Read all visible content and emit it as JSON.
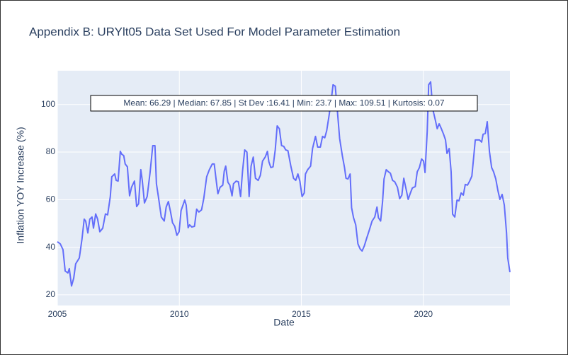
{
  "chart_data": {
    "type": "line",
    "title": "Appendix B: URYlt05 Data Set Used For Model Parameter Estimation",
    "x_label": "Date",
    "y_label": "Inflation YOY Increase (%)",
    "annotation": "Mean: 66.29 | Median: 67.85 | St Dev :16.41 | Min: 23.7 | Max: 109.51 | Kurtosis: 0.07",
    "color": "#636efa",
    "grid": true,
    "xlim": [
      2005,
      2023.55
    ],
    "xticks": [
      2005,
      2010,
      2015,
      2020
    ],
    "ylim": [
      15.5,
      114.2
    ],
    "yticks": [
      20,
      40,
      60,
      80,
      100
    ],
    "x": [
      2005.0,
      2005.12,
      2005.23,
      2005.32,
      2005.43,
      2005.49,
      2005.58,
      2005.67,
      2005.75,
      2005.9,
      2006.01,
      2006.1,
      2006.16,
      2006.25,
      2006.33,
      2006.42,
      2006.48,
      2006.57,
      2006.65,
      2006.74,
      2006.86,
      2006.97,
      2007.06,
      2007.17,
      2007.23,
      2007.35,
      2007.41,
      2007.49,
      2007.58,
      2007.64,
      2007.72,
      2007.78,
      2007.87,
      2007.96,
      2008.04,
      2008.16,
      2008.25,
      2008.33,
      2008.42,
      2008.48,
      2008.57,
      2008.68,
      2008.8,
      2008.91,
      2009.0,
      2009.06,
      2009.14,
      2009.26,
      2009.38,
      2009.46,
      2009.55,
      2009.64,
      2009.72,
      2009.81,
      2009.9,
      2009.99,
      2010.07,
      2010.22,
      2010.28,
      2010.36,
      2010.42,
      2010.51,
      2010.62,
      2010.71,
      2010.8,
      2010.91,
      2011.0,
      2011.12,
      2011.23,
      2011.35,
      2011.43,
      2011.52,
      2011.58,
      2011.67,
      2011.78,
      2011.84,
      2011.9,
      2011.99,
      2012.07,
      2012.16,
      2012.22,
      2012.33,
      2012.42,
      2012.51,
      2012.59,
      2012.68,
      2012.77,
      2012.86,
      2012.94,
      2013.03,
      2013.12,
      2013.23,
      2013.32,
      2013.41,
      2013.52,
      2013.61,
      2013.67,
      2013.75,
      2013.84,
      2013.93,
      2014.01,
      2014.1,
      2014.19,
      2014.28,
      2014.36,
      2014.45,
      2014.57,
      2014.68,
      2014.77,
      2014.86,
      2014.94,
      2015.03,
      2015.12,
      2015.17,
      2015.26,
      2015.38,
      2015.46,
      2015.58,
      2015.67,
      2015.78,
      2015.87,
      2015.96,
      2016.04,
      2016.13,
      2016.22,
      2016.3,
      2016.39,
      2016.48,
      2016.57,
      2016.68,
      2016.77,
      2016.83,
      2016.91,
      2017.0,
      2017.06,
      2017.14,
      2017.23,
      2017.32,
      2017.41,
      2017.49,
      2017.58,
      2017.67,
      2017.78,
      2017.9,
      2018.01,
      2018.1,
      2018.16,
      2018.25,
      2018.33,
      2018.39,
      2018.48,
      2018.57,
      2018.65,
      2018.74,
      2018.83,
      2018.94,
      2019.03,
      2019.12,
      2019.2,
      2019.29,
      2019.38,
      2019.46,
      2019.55,
      2019.67,
      2019.75,
      2019.84,
      2019.93,
      2020.01,
      2020.07,
      2020.16,
      2020.22,
      2020.3,
      2020.39,
      2020.48,
      2020.57,
      2020.65,
      2020.74,
      2020.83,
      2020.91,
      2020.97,
      2021.06,
      2021.14,
      2021.2,
      2021.29,
      2021.38,
      2021.46,
      2021.55,
      2021.64,
      2021.72,
      2021.81,
      2021.9,
      2021.99,
      2022.07,
      2022.13,
      2022.22,
      2022.3,
      2022.39,
      2022.45,
      2022.54,
      2022.62,
      2022.71,
      2022.8,
      2022.88,
      2022.97,
      2023.06,
      2023.14,
      2023.23,
      2023.32,
      2023.41,
      2023.46,
      2023.55
    ],
    "values": [
      42.3,
      41.4,
      39,
      30,
      29.2,
      31,
      23.7,
      27,
      33,
      35.5,
      43.5,
      51.8,
      51,
      46,
      51.8,
      52.7,
      48,
      54,
      51.8,
      46.5,
      48,
      54,
      53.6,
      61.3,
      69.6,
      70.8,
      68.1,
      67.8,
      80.3,
      79.1,
      78.5,
      75,
      73.8,
      61.6,
      65.2,
      67.8,
      57.1,
      58.3,
      72.6,
      68.1,
      58.6,
      61.3,
      71.4,
      82.7,
      82.7,
      66.7,
      61.3,
      52.7,
      51,
      56.9,
      59.2,
      54.8,
      50.3,
      48.8,
      45,
      46.5,
      55.4,
      59.8,
      57.7,
      48.2,
      49.4,
      48.5,
      48.8,
      56,
      54.8,
      55.7,
      60.4,
      69.6,
      72.6,
      75,
      75,
      67.3,
      62.5,
      65.2,
      66.1,
      72,
      74.1,
      67.3,
      66.1,
      61.6,
      66.7,
      67.8,
      67.5,
      61.3,
      72,
      80.9,
      80,
      61.3,
      74.1,
      77.9,
      69,
      68.1,
      70.2,
      76.2,
      77.9,
      80.3,
      75.9,
      73.5,
      73.8,
      80.9,
      91,
      89.8,
      82.7,
      82.4,
      80.9,
      80.6,
      74.1,
      69,
      68.1,
      70.8,
      67.8,
      61.3,
      62.8,
      70.8,
      72.6,
      74.1,
      81.5,
      86.6,
      82.1,
      82.1,
      86.6,
      86,
      89,
      94.9,
      101.4,
      108.3,
      107.7,
      97,
      85.7,
      78.5,
      73.5,
      69,
      68.7,
      70.8,
      56.6,
      52.4,
      49.4,
      41.4,
      39.3,
      38.4,
      40.5,
      43.5,
      47,
      51,
      52.7,
      56.9,
      52.4,
      51,
      59.2,
      68.7,
      72.6,
      71.7,
      71.1,
      68.1,
      67.5,
      65.2,
      60.4,
      61.9,
      69,
      64.6,
      60.1,
      62.5,
      64.9,
      65.5,
      71.7,
      73.5,
      77.1,
      76.2,
      71.4,
      88.7,
      108.3,
      109.5,
      97.9,
      94,
      89.8,
      91.9,
      89.8,
      87.5,
      85.1,
      79.4,
      81.5,
      71.7,
      53.9,
      52.7,
      59.8,
      59.5,
      62.8,
      61.9,
      66.4,
      66.1,
      67.8,
      69.9,
      78.5,
      85.1,
      85.1,
      85.1,
      84.2,
      87.5,
      87.8,
      92.8,
      80.3,
      73.5,
      71.7,
      68.7,
      63.7,
      60.1,
      62.2,
      57.7,
      46.1,
      35.5,
      29.5
    ]
  }
}
